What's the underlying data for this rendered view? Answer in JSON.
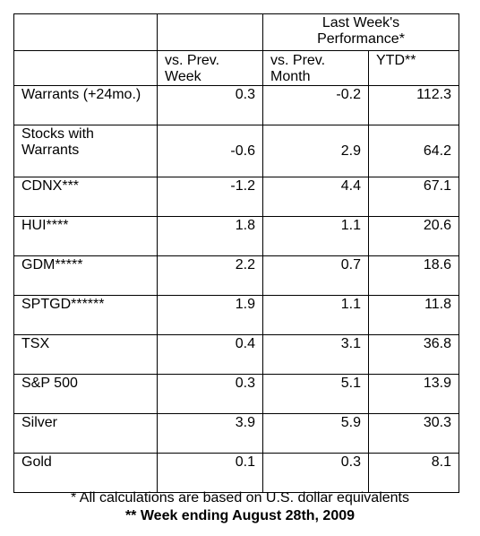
{
  "header": {
    "group_label_line1": "Last Week's",
    "group_label_line2": "Performance*",
    "col_week_line1": "vs. Prev.",
    "col_week_line2": "Week",
    "col_month_line1": "vs. Prev.",
    "col_month_line2": "Month",
    "col_ytd": "YTD**"
  },
  "rows": [
    {
      "name_line1": "Warrants (+24mo.)",
      "name_line2": "",
      "week": "0.3",
      "month": "-0.2",
      "ytd": "112.3"
    },
    {
      "name_line1": "Stocks with",
      "name_line2": "Warrants",
      "week": "-0.6",
      "month": "2.9",
      "ytd": "64.2"
    },
    {
      "name_line1": "CDNX***",
      "name_line2": "",
      "week": "-1.2",
      "month": "4.4",
      "ytd": "67.1"
    },
    {
      "name_line1": "HUI****",
      "name_line2": "",
      "week": "1.8",
      "month": "1.1",
      "ytd": "20.6"
    },
    {
      "name_line1": "GDM*****",
      "name_line2": "",
      "week": "2.2",
      "month": "0.7",
      "ytd": "18.6"
    },
    {
      "name_line1": "SPTGD******",
      "name_line2": "",
      "week": "1.9",
      "month": "1.1",
      "ytd": "11.8"
    },
    {
      "name_line1": "TSX",
      "name_line2": "",
      "week": "0.4",
      "month": "3.1",
      "ytd": "36.8"
    },
    {
      "name_line1": "S&P 500",
      "name_line2": "",
      "week": "0.3",
      "month": "5.1",
      "ytd": "13.9"
    },
    {
      "name_line1": "Silver",
      "name_line2": "",
      "week": "3.9",
      "month": "5.9",
      "ytd": "30.3"
    },
    {
      "name_line1": "Gold",
      "name_line2": "",
      "week": "0.1",
      "month": "0.3",
      "ytd": "8.1"
    }
  ],
  "footer": {
    "note1": "* All calculations are based on U.S. dollar equivalents",
    "note2": "** Week ending August 28th, 2009"
  }
}
